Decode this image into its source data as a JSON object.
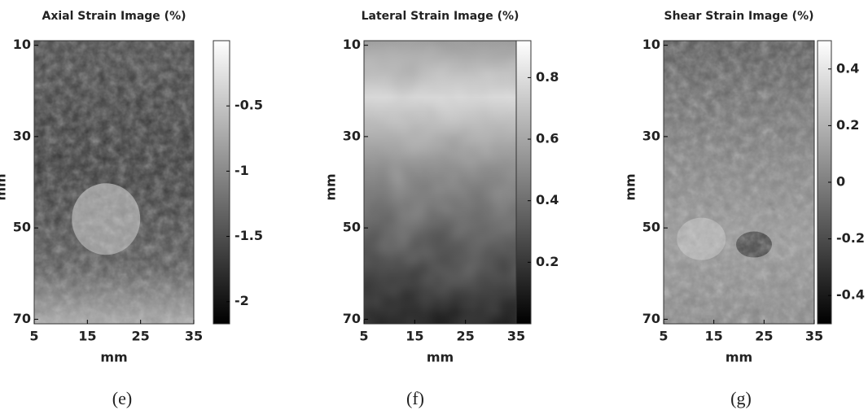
{
  "chart_data": [
    {
      "type": "heatmap",
      "title": "Axial Strain Image (%)",
      "xlabel": "mm",
      "ylabel": "mm",
      "caption": "(e)",
      "xlim": [
        5,
        35
      ],
      "xticks": [
        5,
        15,
        25,
        35
      ],
      "ylim": [
        9,
        71
      ],
      "yticks": [
        10,
        30,
        50,
        70
      ],
      "clim": [
        -2.17,
        0
      ],
      "colorbar_ticks": [
        -0.5,
        -1,
        -1.5,
        -2
      ]
    },
    {
      "type": "heatmap",
      "title": "Lateral Strain Image (%)",
      "xlabel": "mm",
      "ylabel": "mm",
      "caption": "(f)",
      "xlim": [
        5,
        35
      ],
      "xticks": [
        5,
        15,
        25,
        35
      ],
      "ylim": [
        9,
        71
      ],
      "yticks": [
        10,
        30,
        50,
        70
      ],
      "clim": [
        0,
        0.92
      ],
      "colorbar_ticks": [
        0.8,
        0.6,
        0.4,
        0.2
      ]
    },
    {
      "type": "heatmap",
      "title": "Shear Strain Image (%)",
      "xlabel": "mm",
      "ylabel": "mm",
      "caption": "(g)",
      "xlim": [
        5,
        35
      ],
      "xticks": [
        5,
        15,
        25,
        35
      ],
      "ylim": [
        9,
        71
      ],
      "yticks": [
        10,
        30,
        50,
        70
      ],
      "clim": [
        -0.5,
        0.5
      ],
      "colorbar_ticks": [
        0.4,
        0.2,
        0,
        -0.2,
        -0.4
      ]
    }
  ]
}
